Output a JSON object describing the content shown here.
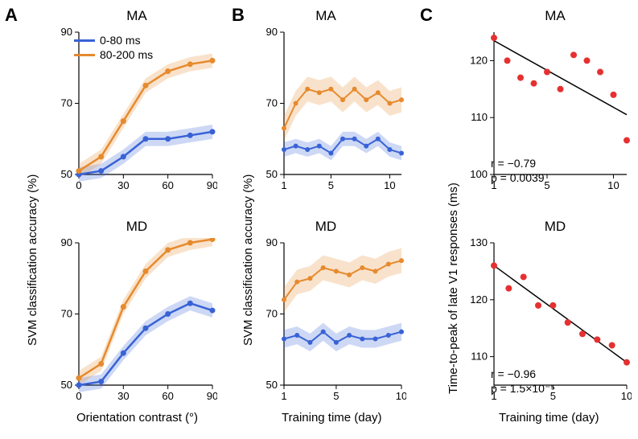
{
  "labels": {
    "A": "A",
    "B": "B",
    "C": "C"
  },
  "legend": {
    "items": [
      {
        "label": "0-80 ms",
        "color": "#3862d6"
      },
      {
        "label": "80-200 ms",
        "color": "#e68a2e"
      }
    ]
  },
  "colors": {
    "blue": "#3862d6",
    "blue_fill": "rgba(56,98,214,0.25)",
    "orange": "#e68a2e",
    "orange_fill": "rgba(230,138,46,0.25)",
    "red_marker": "#e63030",
    "fit_line": "#000",
    "axis": "#000",
    "bg": "#ffffff"
  },
  "typography": {
    "panel_label_fontsize": 22,
    "subtitle_fontsize": 17,
    "axis_label_fontsize": 15,
    "tick_fontsize": 13,
    "legend_fontsize": 14,
    "stat_fontsize": 14
  },
  "panelA": {
    "ylabel": "SVM classification accuracy (%)",
    "xlabel": "Orientation contrast (°)",
    "type": "line_with_band",
    "x_ticks": [
      0,
      30,
      60,
      90
    ],
    "xlim": [
      0,
      90
    ],
    "line_width": 2.5,
    "marker_size": 3.5,
    "band_half_width": 2,
    "MA": {
      "title": "MA",
      "ylim": [
        50,
        90
      ],
      "y_ticks": [
        50,
        70,
        90
      ],
      "x": [
        0,
        15,
        30,
        45,
        60,
        75,
        90
      ],
      "blue": [
        50,
        51,
        55,
        60,
        60,
        61,
        62
      ],
      "orange": [
        51,
        55,
        65,
        75,
        79,
        81,
        82
      ]
    },
    "MD": {
      "title": "MD",
      "ylim": [
        50,
        90
      ],
      "y_ticks": [
        50,
        70,
        90
      ],
      "x": [
        0,
        15,
        30,
        45,
        60,
        75,
        90
      ],
      "blue": [
        50,
        51,
        59,
        66,
        70,
        73,
        71
      ],
      "orange": [
        52,
        56,
        72,
        82,
        88,
        90,
        91
      ]
    }
  },
  "panelB": {
    "ylabel": "SVM classification accuracy (%)",
    "xlabel": "Training time (day)",
    "type": "line_with_band",
    "x_ticks": [
      1,
      5,
      10
    ],
    "line_width": 2,
    "marker_size": 3,
    "MA": {
      "title": "MA",
      "ylim": [
        50,
        90
      ],
      "y_ticks": [
        50,
        70,
        90
      ],
      "xlim": [
        1,
        11
      ],
      "x": [
        1,
        2,
        3,
        4,
        5,
        6,
        7,
        8,
        9,
        10,
        11
      ],
      "x_ticks": [
        1,
        5,
        10
      ],
      "blue": [
        57,
        58,
        57,
        58,
        56,
        60,
        60,
        58,
        60,
        57,
        56
      ],
      "blue_band": 2,
      "orange": [
        63,
        70,
        74,
        73,
        74,
        71,
        74,
        71,
        73,
        70,
        71
      ],
      "orange_band": 3.5
    },
    "MD": {
      "title": "MD",
      "ylim": [
        50,
        90
      ],
      "y_ticks": [
        50,
        70,
        90
      ],
      "xlim": [
        1,
        10
      ],
      "x": [
        1,
        2,
        3,
        4,
        5,
        6,
        7,
        8,
        9,
        10
      ],
      "x_ticks": [
        1,
        5,
        10
      ],
      "blue": [
        63,
        64,
        62,
        65,
        62,
        64,
        63,
        63,
        64,
        65
      ],
      "blue_band": 2.5,
      "orange": [
        74,
        79,
        80,
        83,
        82,
        81,
        83,
        82,
        84,
        85
      ],
      "orange_band": 3.5
    }
  },
  "panelC": {
    "ylabel": "Time-to-peak of late V1 responses (ms)",
    "xlabel": "Training time (day)",
    "type": "scatter_with_fit",
    "x_ticks": [
      1,
      5,
      10
    ],
    "marker_color": "#e63030",
    "marker_size": 4,
    "fit_line_color": "#000",
    "fit_line_width": 1.5,
    "MA": {
      "title": "MA",
      "ylim": [
        100,
        125
      ],
      "y_ticks": [
        100,
        110,
        120
      ],
      "xlim": [
        1,
        11
      ],
      "x": [
        1,
        2,
        3,
        4,
        5,
        6,
        7,
        8,
        9,
        10,
        11
      ],
      "y": [
        124,
        120,
        117,
        116,
        118,
        115,
        121,
        120,
        118,
        114,
        106
      ],
      "fit": {
        "x": [
          1,
          11
        ],
        "y": [
          123.5,
          110.5
        ]
      },
      "stats": {
        "r_label": "r = −0.79",
        "p_label": "p = 0.0039"
      }
    },
    "MD": {
      "title": "MD",
      "ylim": [
        105,
        130
      ],
      "y_ticks": [
        110,
        120,
        130
      ],
      "xlim": [
        1,
        10
      ],
      "x": [
        1,
        2,
        3,
        4,
        5,
        6,
        7,
        8,
        9,
        10
      ],
      "y": [
        126,
        122,
        124,
        119,
        119,
        116,
        114,
        113,
        112,
        109
      ],
      "fit": {
        "x": [
          1,
          10
        ],
        "y": [
          126,
          109
        ]
      },
      "stats": {
        "r_label": "r = −0.96",
        "p_label": "p = 1.5×10⁻⁵"
      }
    }
  }
}
